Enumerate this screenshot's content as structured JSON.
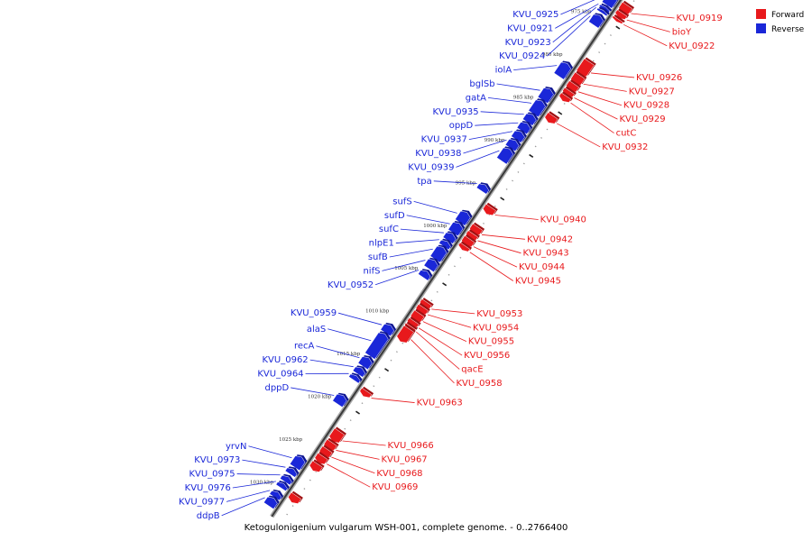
{
  "caption": "Ketogulonigenium vulgarum WSH-001, complete genome. - 0..2766400",
  "legend": [
    {
      "label": "Forward",
      "color": "#e8191c"
    },
    {
      "label": "Reverse",
      "color": "#1a27d8"
    }
  ],
  "axis_ticks": [
    "975 kbp",
    "980 kbp",
    "985 kbp",
    "990 kbp",
    "995 kbp",
    "1000 kbp",
    "1005 kbp",
    "1010 kbp",
    "1015 kbp",
    "1020 kbp",
    "1025 kbp",
    "1030 kbp"
  ],
  "forward_genes": [
    {
      "name": "KVU_0919",
      "start_kbp": 972.7,
      "len_kbp": 0.9
    },
    {
      "name": "bioY",
      "start_kbp": 973.6,
      "len_kbp": 0.6
    },
    {
      "name": "KVU_0922",
      "start_kbp": 974.3,
      "len_kbp": 0.3
    },
    {
      "name": "KVU_0926",
      "start_kbp": 979.3,
      "len_kbp": 1.6
    },
    {
      "name": "KVU_0927",
      "start_kbp": 980.9,
      "len_kbp": 1.0
    },
    {
      "name": "KVU_0928",
      "start_kbp": 981.9,
      "len_kbp": 0.8
    },
    {
      "name": "KVU_0929",
      "start_kbp": 982.7,
      "len_kbp": 0.6
    },
    {
      "name": "cutC",
      "start_kbp": 983.3,
      "len_kbp": 0.6
    },
    {
      "name": "KVU_0932",
      "start_kbp": 985.6,
      "len_kbp": 0.8
    },
    {
      "name": "KVU_0940",
      "start_kbp": 996.3,
      "len_kbp": 0.8
    },
    {
      "name": "KVU_0942",
      "start_kbp": 998.6,
      "len_kbp": 0.8
    },
    {
      "name": "KVU_0943",
      "start_kbp": 999.4,
      "len_kbp": 0.6
    },
    {
      "name": "KVU_0944",
      "start_kbp": 1000.0,
      "len_kbp": 0.8
    },
    {
      "name": "KVU_0945",
      "start_kbp": 1000.8,
      "len_kbp": 0.5
    },
    {
      "name": "KVU_0953",
      "start_kbp": 1007.4,
      "len_kbp": 0.6
    },
    {
      "name": "KVU_0954",
      "start_kbp": 1008.0,
      "len_kbp": 0.7
    },
    {
      "name": "KVU_0955",
      "start_kbp": 1008.7,
      "len_kbp": 0.9
    },
    {
      "name": "KVU_0956",
      "start_kbp": 1009.6,
      "len_kbp": 0.6
    },
    {
      "name": "qacE",
      "start_kbp": 1010.2,
      "len_kbp": 0.3
    },
    {
      "name": "KVU_0958",
      "start_kbp": 1010.5,
      "len_kbp": 1.5
    },
    {
      "name": "KVU_0963",
      "start_kbp": 1017.8,
      "len_kbp": 0.6
    },
    {
      "name": "KVU_0966",
      "start_kbp": 1022.5,
      "len_kbp": 1.2
    },
    {
      "name": "KVU_0967",
      "start_kbp": 1023.8,
      "len_kbp": 0.8
    },
    {
      "name": "KVU_0968",
      "start_kbp": 1024.6,
      "len_kbp": 0.8
    },
    {
      "name": "KVU_0969",
      "start_kbp": 1025.4,
      "len_kbp": 0.8
    },
    {
      "name": "",
      "start_kbp": 1026.3,
      "len_kbp": 0.8
    },
    {
      "name": "",
      "start_kbp": 1030.0,
      "len_kbp": 0.8
    }
  ],
  "reverse_genes": [
    {
      "name": "KVU_0925",
      "start_kbp": 972.6,
      "len_kbp": 1.2
    },
    {
      "name": "KVU_0921",
      "start_kbp": 974.0,
      "len_kbp": 0.3
    },
    {
      "name": "KVU_0923",
      "start_kbp": 974.4,
      "len_kbp": 0.3
    },
    {
      "name": "KVU_0924",
      "start_kbp": 975.0,
      "len_kbp": 1.1
    },
    {
      "name": "iolA",
      "start_kbp": 980.6,
      "len_kbp": 1.5
    },
    {
      "name": "bglSb",
      "start_kbp": 983.6,
      "len_kbp": 1.3
    },
    {
      "name": "gatA",
      "start_kbp": 985.0,
      "len_kbp": 1.5
    },
    {
      "name": "KVU_0935",
      "start_kbp": 986.6,
      "len_kbp": 0.9
    },
    {
      "name": "oppD",
      "start_kbp": 987.6,
      "len_kbp": 0.9
    },
    {
      "name": "KVU_0937",
      "start_kbp": 988.6,
      "len_kbp": 0.9
    },
    {
      "name": "KVU_0938",
      "start_kbp": 989.6,
      "len_kbp": 0.9
    },
    {
      "name": "KVU_0939",
      "start_kbp": 990.6,
      "len_kbp": 1.4
    },
    {
      "name": "tpa",
      "start_kbp": 994.8,
      "len_kbp": 0.7
    },
    {
      "name": "sufS",
      "start_kbp": 998.0,
      "len_kbp": 1.2
    },
    {
      "name": "sufD",
      "start_kbp": 999.3,
      "len_kbp": 1.1
    },
    {
      "name": "sufC",
      "start_kbp": 1000.5,
      "len_kbp": 0.8
    },
    {
      "name": "nlpE1",
      "start_kbp": 1001.4,
      "len_kbp": 0.6
    },
    {
      "name": "sufB",
      "start_kbp": 1002.1,
      "len_kbp": 1.4
    },
    {
      "name": "nifS",
      "start_kbp": 1003.6,
      "len_kbp": 1.0
    },
    {
      "name": "KVU_0952",
      "start_kbp": 1004.9,
      "len_kbp": 0.7
    },
    {
      "name": "KVU_0959",
      "start_kbp": 1011.2,
      "len_kbp": 0.9
    },
    {
      "name": "alaS",
      "start_kbp": 1012.2,
      "len_kbp": 2.6
    },
    {
      "name": "recA",
      "start_kbp": 1015.0,
      "len_kbp": 1.0
    },
    {
      "name": "KVU_0962",
      "start_kbp": 1016.2,
      "len_kbp": 0.7
    },
    {
      "name": "KVU_0964",
      "start_kbp": 1017.1,
      "len_kbp": 0.5
    },
    {
      "name": "dppD",
      "start_kbp": 1019.4,
      "len_kbp": 1.0
    },
    {
      "name": "yrvN",
      "start_kbp": 1026.6,
      "len_kbp": 1.2
    },
    {
      "name": "KVU_0973",
      "start_kbp": 1028.0,
      "len_kbp": 0.6
    },
    {
      "name": "KVU_0975",
      "start_kbp": 1028.9,
      "len_kbp": 0.6
    },
    {
      "name": "KVU_0976",
      "start_kbp": 1029.7,
      "len_kbp": 0.5
    },
    {
      "name": "KVU_0977",
      "start_kbp": 1030.7,
      "len_kbp": 0.6
    },
    {
      "name": "ddpB",
      "start_kbp": 1031.4,
      "len_kbp": 0.9
    }
  ]
}
